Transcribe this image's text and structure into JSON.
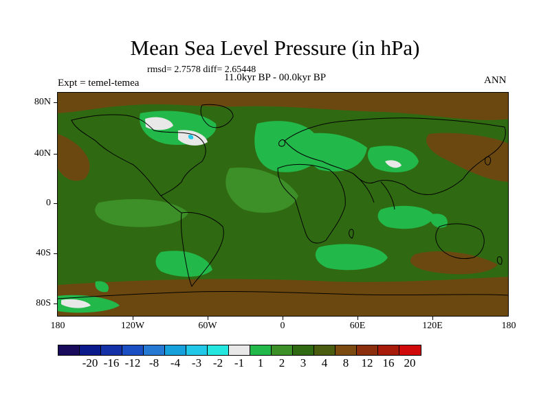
{
  "title": "Mean Sea Level Pressure (in hPa)",
  "stats": "rmsd= 2.7578 diff= 2.65448",
  "period": "11.0kyr BP - 00.0kyr BP",
  "experiment": "Expt = temel-temea",
  "season": "ANN",
  "lat_labels": [
    "80N",
    "40N",
    "0",
    "40S",
    "80S"
  ],
  "lon_labels": [
    "180",
    "120W",
    "60W",
    "0",
    "60E",
    "120E",
    "180"
  ],
  "colorbar": {
    "labels": [
      "-20",
      "-16",
      "-12",
      "-8",
      "-4",
      "-3",
      "-2",
      "-1",
      "1",
      "2",
      "3",
      "4",
      "8",
      "12",
      "16",
      "20"
    ],
    "colors": [
      "#1a0a5c",
      "#0a1a8a",
      "#1431a8",
      "#1a4fc4",
      "#2679d2",
      "#16a0dc",
      "#22c8e8",
      "#24e8e0",
      "#e8e8e8",
      "#22b84a",
      "#3d8f28",
      "#2f6a12",
      "#4a5c10",
      "#7a4a10",
      "#8a2e0e",
      "#a81a0a",
      "#d00a0a"
    ]
  },
  "map_colors": {
    "ocean_base": "#2f6a12",
    "brown": "#6b4810",
    "light_green": "#22b84a",
    "mid_green": "#3d8f28",
    "white": "#e8e8e8",
    "cyan": "#22c8e8"
  }
}
